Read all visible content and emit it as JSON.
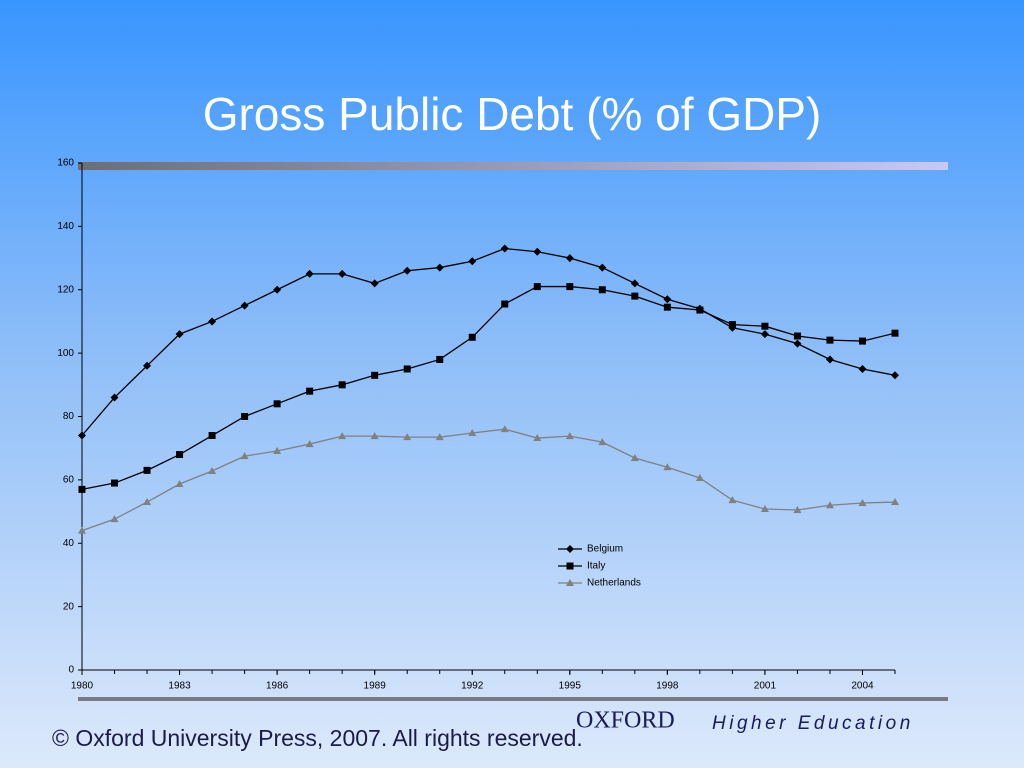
{
  "chart_data": {
    "type": "line",
    "title": "Gross Public Debt (% of GDP)",
    "x": [
      1980,
      1981,
      1982,
      1983,
      1984,
      1985,
      1986,
      1987,
      1988,
      1989,
      1990,
      1991,
      1992,
      1993,
      1994,
      1995,
      1996,
      1997,
      1998,
      1999,
      2000,
      2001,
      2002,
      2003,
      2004,
      2005
    ],
    "series": [
      {
        "name": "Belgium",
        "color": "#000000",
        "marker": "diamond",
        "values": [
          74,
          86,
          96,
          106,
          110,
          115,
          120,
          125,
          125,
          122,
          126,
          127,
          129,
          133,
          132,
          130,
          127,
          122,
          117,
          114,
          108,
          106,
          103,
          98,
          95,
          93
        ]
      },
      {
        "name": "Italy",
        "color": "#000000",
        "marker": "square",
        "values": [
          57,
          59,
          63,
          68,
          74,
          80,
          84,
          88,
          90,
          93,
          95,
          98,
          105,
          115.5,
          121,
          121,
          120,
          118,
          114.5,
          113.6,
          109,
          108.5,
          105.4,
          104.1,
          103.8,
          106.3
        ]
      },
      {
        "name": "Netherlands",
        "color": "#808080",
        "marker": "triangle",
        "values": [
          44,
          47.6,
          53,
          58.7,
          62.8,
          67.5,
          69.1,
          71.3,
          73.8,
          73.8,
          73.5,
          73.5,
          74.8,
          76,
          73.2,
          73.8,
          71.9,
          66.9,
          64,
          60.6,
          53.6,
          50.8,
          50.5,
          52,
          52.7,
          53
        ]
      }
    ],
    "xlim": [
      1980,
      2005
    ],
    "xticks": [
      1980,
      1983,
      1986,
      1989,
      1992,
      1995,
      1998,
      2001,
      2004
    ],
    "ylim": [
      0,
      160
    ],
    "yticks": [
      0,
      20,
      40,
      60,
      80,
      100,
      120,
      140,
      160
    ],
    "grid": false,
    "legend": "lower center"
  },
  "footer": {
    "copyright": "© Oxford University Press, 2007. All rights reserved.",
    "brand": "OXFORD",
    "division": "Higher Education"
  }
}
